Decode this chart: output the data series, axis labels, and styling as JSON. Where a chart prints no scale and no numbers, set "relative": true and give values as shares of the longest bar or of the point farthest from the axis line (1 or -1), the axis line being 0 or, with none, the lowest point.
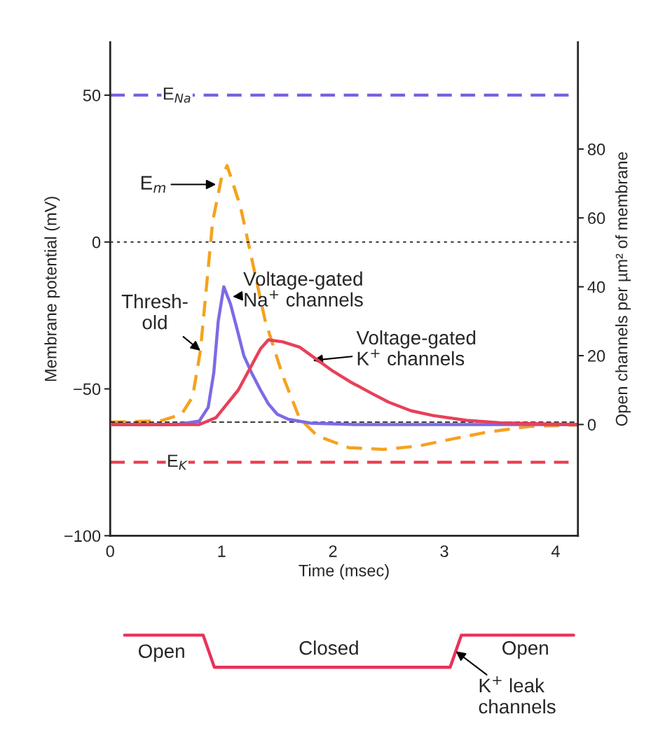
{
  "chart_data": [
    {
      "type": "line",
      "xlabel": "Time (msec)",
      "ylabel": "Membrane potential (mV)",
      "y2label": "Open channels per µm² of membrane",
      "xlim": [
        0,
        4.2
      ],
      "xticks": [
        0,
        1,
        2,
        3,
        4
      ],
      "ylim": [
        -100,
        68
      ],
      "yticks": [
        50,
        0,
        {
          "value": -50,
          "label": "−50"
        },
        {
          "value": -100,
          "label": "−100"
        }
      ],
      "y2lim": [
        -32.3,
        111
      ],
      "y2ticks": [
        0,
        20,
        40,
        60,
        80
      ],
      "grid": false,
      "legend": false,
      "marker": "none",
      "series": [
        {
          "color": "#f5a21f",
          "line_style": "dashed",
          "x": [
            0,
            0.45,
            0.64,
            0.74,
            0.81,
            0.86,
            0.92,
            1.0,
            1.05,
            1.17,
            1.39,
            1.55,
            1.7,
            1.86,
            2.14,
            2.45,
            2.76,
            3.08,
            3.39,
            3.76,
            4.2
          ],
          "values": [
            -61.3,
            -60.9,
            -58.7,
            -52.7,
            -37,
            -17,
            7,
            22,
            26,
            12,
            -26.5,
            -45.6,
            -60,
            -66,
            -70,
            -70.6,
            -69.5,
            -67,
            -64.7,
            -62.8,
            -62.3
          ]
        },
        {
          "color": "#7b6be6",
          "line_style": "solid",
          "axis": "y2",
          "x": [
            0,
            0.6,
            0.8,
            0.88,
            0.93,
            0.97,
            1.02,
            1.08,
            1.14,
            1.2,
            1.27,
            1.35,
            1.42,
            1.5,
            1.6,
            1.8,
            2.2,
            4.2
          ],
          "values": [
            0,
            0,
            1,
            5,
            15,
            30,
            40,
            35,
            27.6,
            20,
            15,
            10,
            6,
            3,
            1.5,
            0.4,
            0,
            0
          ]
        },
        {
          "color": "#e8405a",
          "line_style": "solid",
          "axis": "y2",
          "x": [
            0,
            0.8,
            0.95,
            1.05,
            1.15,
            1.25,
            1.35,
            1.42,
            1.55,
            1.7,
            1.85,
            2.0,
            2.15,
            2.35,
            2.5,
            2.7,
            2.9,
            3.2,
            3.5,
            4.0,
            4.2
          ],
          "values": [
            0,
            0,
            2,
            6,
            10,
            16,
            22,
            24.6,
            24,
            22.5,
            19,
            15.5,
            12.5,
            9,
            6.5,
            4,
            2.6,
            1.2,
            0.5,
            0.1,
            0
          ]
        }
      ],
      "ref_lines": [
        {
          "axis": "y",
          "value": 50,
          "label": "E$_{Na}$",
          "color": "#7b5fe0",
          "line_style": "dashed"
        },
        {
          "axis": "y",
          "value": -75,
          "label": "E$_{K}$",
          "color": "#e84050",
          "line_style": "dashed"
        },
        {
          "axis": "y",
          "value": 0,
          "color": "#000000",
          "line_style": "dotted"
        },
        {
          "axis": "y",
          "value": -61.3,
          "color": "#000000",
          "line_style": "dashed"
        }
      ],
      "annotations": [
        {
          "text": "E$_{m}$",
          "x": 0.95,
          "y": 19.6
        },
        {
          "text": "Thresh-\nold",
          "x": 0.81,
          "y": -37
        },
        {
          "text": "Voltage-gated\nNa$^{+}$ channels",
          "x": 1.1,
          "y": -18.6
        },
        {
          "text": "Voltage-gated\nK$^{+}$ channels",
          "x": 1.82,
          "y": -40.3
        }
      ]
    },
    {
      "type": "line",
      "relative": true,
      "marker": "none",
      "categories": [
        null,
        null,
        null,
        null,
        null,
        null,
        null,
        null,
        null,
        null,
        null,
        null,
        null,
        null,
        null,
        null,
        null,
        null,
        null,
        null,
        null,
        null,
        null,
        null,
        null,
        null,
        null,
        null,
        null,
        null,
        null,
        null,
        null,
        null,
        null,
        null,
        null,
        null,
        null,
        null,
        null
      ],
      "series": [
        {
          "color": "#e8325a",
          "line_style": "solid",
          "values": [
            1,
            1,
            1,
            1,
            1,
            1,
            1,
            1,
            0,
            0,
            0,
            0,
            0,
            0,
            0,
            0,
            0,
            0,
            0,
            0,
            0,
            0,
            0,
            0,
            0,
            0,
            0,
            0,
            0,
            0,
            1,
            1,
            1,
            1,
            1,
            1,
            1,
            1,
            1,
            1,
            1
          ]
        }
      ],
      "annotations": [
        "Open",
        "Closed",
        "Open",
        "K$^{+}$ leak\nchannels"
      ]
    }
  ]
}
